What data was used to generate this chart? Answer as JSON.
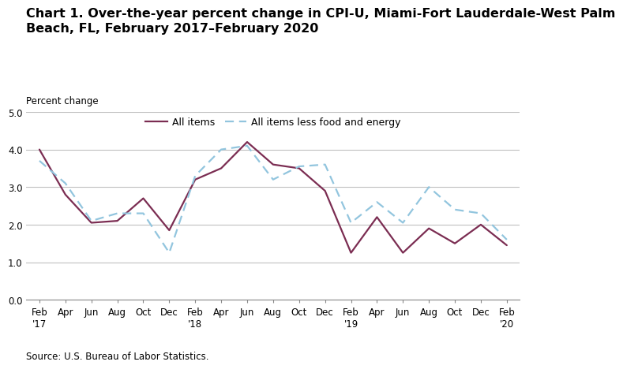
{
  "title": "Chart 1. Over-the-year percent change in CPI-U, Miami-Fort Lauderdale-West Palm\nBeach, FL, February 2017–February 2020",
  "ylabel": "Percent change",
  "source": "Source: U.S. Bureau of Labor Statistics.",
  "ylim": [
    0.0,
    5.0
  ],
  "yticks": [
    0.0,
    1.0,
    2.0,
    3.0,
    4.0,
    5.0
  ],
  "x_labels": [
    "Feb\n'17",
    "Apr",
    "Jun",
    "Aug",
    "Oct",
    "Dec",
    "Feb\n'18",
    "Apr",
    "Jun",
    "Aug",
    "Oct",
    "Dec",
    "Feb\n'19",
    "Apr",
    "Jun",
    "Aug",
    "Oct",
    "Dec",
    "Feb\n'20"
  ],
  "all_items": [
    4.0,
    2.8,
    2.05,
    2.1,
    2.7,
    1.85,
    3.2,
    3.5,
    4.2,
    3.6,
    3.5,
    2.9,
    1.25,
    2.2,
    1.25,
    1.9,
    1.5,
    2.0,
    1.45
  ],
  "all_items_less": [
    3.7,
    3.1,
    2.1,
    2.3,
    2.3,
    1.25,
    3.3,
    4.0,
    4.1,
    3.2,
    3.55,
    3.6,
    2.05,
    2.6,
    2.05,
    3.0,
    2.4,
    2.3,
    1.6
  ],
  "all_items_color": "#7B2D52",
  "all_items_less_color": "#92C5DE",
  "background_color": "#ffffff",
  "grid_color": "#c0c0c0",
  "title_fontsize": 11.5,
  "axis_label_fontsize": 8.5,
  "tick_fontsize": 8.5,
  "legend_fontsize": 9,
  "source_fontsize": 8.5
}
